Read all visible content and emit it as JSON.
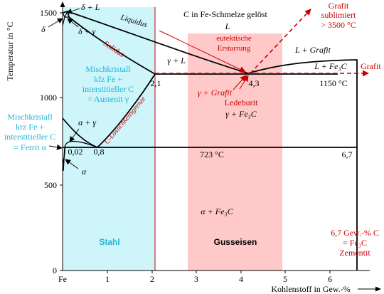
{
  "axes": {
    "y_label": "Temperatur in °C",
    "x_label": "Kohlenstoff in Gew.-%",
    "y_ticks": [
      "0",
      "500",
      "1000",
      "1500"
    ],
    "x_ticks": [
      "Fe",
      "1",
      "2",
      "3",
      "4",
      "5",
      "6"
    ]
  },
  "regions": {
    "stahl": "Stahl",
    "gusseisen": "Gusseisen",
    "austenit": [
      "Mischkristall",
      "kfz Fe +",
      "interstitieller C",
      "= Austenit γ"
    ],
    "ferrit": [
      "Mischkristall",
      "krz Fe +",
      "interstitieller C",
      "= Ferrit α"
    ]
  },
  "labels": {
    "melt_title": "C in Fe-Schmelze gelöst",
    "L": "L",
    "liquidus": "Liquidus",
    "solidus": "Solidus",
    "loeslichkeit": "C-Löslichkeitsgrenze",
    "delta_L": "δ + L",
    "delta": "δ",
    "delta_gamma": "δ + γ",
    "gamma_L": "γ + L",
    "L_grafit": "L + Grafit",
    "L_fe3c": "L + Fe₃C",
    "alpha_gamma": "α + γ",
    "alpha": "α",
    "alpha_fe3c": "α + Fe₃C",
    "gamma_fe3c": "γ + Fe₃C",
    "ledeburit": "Ledeburit",
    "gamma_grafit": "γ + Grafit",
    "eutektisch": [
      "eutektische",
      "Erstarrung"
    ],
    "grafit_arrow": "Grafit",
    "grafit_sublimiert": [
      "Grafit",
      "sublimiert",
      "> 3500 °C"
    ],
    "zementit": [
      "6,7 Gew.-% C",
      "= Fe₃C",
      "Zementit"
    ],
    "val_2_1": "2,1",
    "val_4_3": "4,3",
    "val_0_02": "0,02",
    "val_0_8": "0,8",
    "val_6_7": "6,7",
    "temp_1150": "1150 °C",
    "temp_723": "723 °C"
  },
  "colors": {
    "steel_fill": "#cdf5fa",
    "cast_iron_fill": "#ffc9c9",
    "cyan_text": "#1fb5d8",
    "red_text": "#cc0000",
    "line": "#000000"
  }
}
